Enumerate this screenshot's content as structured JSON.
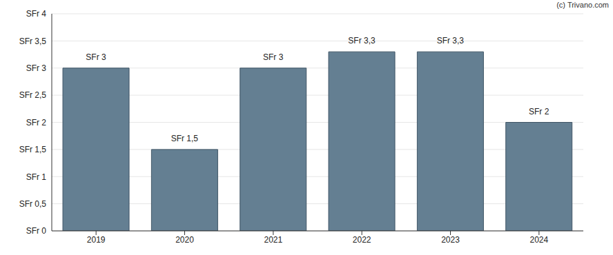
{
  "chart_data": {
    "type": "bar",
    "annotations": [
      "(c) Trivano.com"
    ],
    "categories": [
      "2019",
      "2020",
      "2021",
      "2022",
      "2023",
      "2024"
    ],
    "values": [
      3,
      1.5,
      3,
      3.3,
      3.3,
      2
    ],
    "value_labels": [
      "SFr 3",
      "SFr 1,5",
      "SFr 3",
      "SFr 3,3",
      "SFr 3,3",
      "SFr 2"
    ],
    "color": "#647f92",
    "ylim": [
      0,
      4
    ],
    "yticks": [
      {
        "value": 0,
        "label": "SFr 0"
      },
      {
        "value": 0.5,
        "label": "SFr 0,5"
      },
      {
        "value": 1,
        "label": "SFr 1"
      },
      {
        "value": 1.5,
        "label": "SFr 1,5"
      },
      {
        "value": 2,
        "label": "SFr 2"
      },
      {
        "value": 2.5,
        "label": "SFr 2,5"
      },
      {
        "value": 3,
        "label": "SFr 3"
      },
      {
        "value": 3.5,
        "label": "SFr 3,5"
      },
      {
        "value": 4,
        "label": "SFr 4"
      }
    ],
    "grid": true,
    "data_labels": true
  }
}
